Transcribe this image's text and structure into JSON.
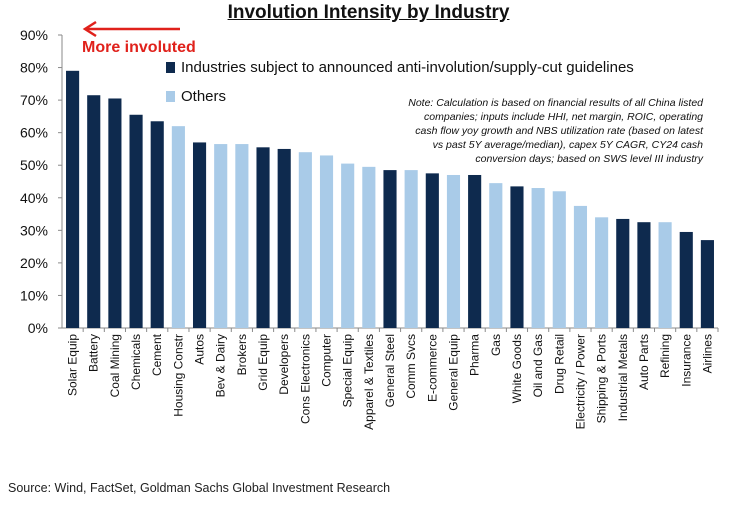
{
  "chart_data": {
    "type": "bar",
    "title": "Involution Intensity by Industry",
    "xlabel": "",
    "ylabel": "",
    "ylim": [
      0,
      90
    ],
    "yticks": [
      "0%",
      "10%",
      "20%",
      "30%",
      "40%",
      "50%",
      "60%",
      "70%",
      "80%",
      "90%"
    ],
    "categories": [
      "Solar Equip",
      "Battery",
      "Coal Mining",
      "Chemicals",
      "Cement",
      "Housing Constr",
      "Autos",
      "Bev & Dairy",
      "Brokers",
      "Grid Equip",
      "Developers",
      "Cons Electronics",
      "Computer",
      "Special Equip",
      "Apparel & Textiles",
      "General Steel",
      "Comm Svcs",
      "E-commerce",
      "General Equip",
      "Pharma",
      "Gas",
      "White Goods",
      "Oil and Gas",
      "Drug Retail",
      "Electricity / Power",
      "Shipping & Ports",
      "Industrial Metals",
      "Auto Parts",
      "Refining",
      "Insurance",
      "Airlines"
    ],
    "values": [
      79,
      71.5,
      70.5,
      65.5,
      63.5,
      62,
      57,
      56.5,
      56.5,
      55.5,
      55,
      54,
      53,
      50.5,
      49.5,
      48.5,
      48.5,
      47.5,
      47,
      47,
      44.5,
      43.5,
      43,
      42,
      37.5,
      34,
      33.5,
      32.5,
      32.5,
      29.5,
      27
    ],
    "groups": [
      "announced",
      "announced",
      "announced",
      "announced",
      "announced",
      "others",
      "announced",
      "others",
      "others",
      "announced",
      "announced",
      "others",
      "others",
      "others",
      "others",
      "announced",
      "others",
      "announced",
      "others",
      "announced",
      "others",
      "announced",
      "others",
      "others",
      "others",
      "others",
      "announced",
      "announced",
      "others",
      "announced",
      "announced"
    ],
    "legend": [
      {
        "key": "announced",
        "label": "Industries subject to announced anti-involution/supply-cut guidelines",
        "color": "#0e2a4e"
      },
      {
        "key": "others",
        "label": "Others",
        "color": "#a9cbe8"
      }
    ],
    "annotation_arrow": "More involuted",
    "note_lines": [
      "Note: Calculation is based on financial results of all China listed",
      "companies; inputs include HHI, net margin, ROIC, operating",
      "cash flow yoy growth and NBS utilization rate (based on latest",
      "vs past 5Y average/median), capex 5Y CAGR, CY24 cash",
      "conversion days;  based on SWS level III industry"
    ]
  },
  "colors": {
    "accent_red": "#e0211b",
    "axis": "#888888",
    "text": "#111111"
  },
  "source": "Source: Wind, FactSet, Goldman Sachs Global Investment Research"
}
